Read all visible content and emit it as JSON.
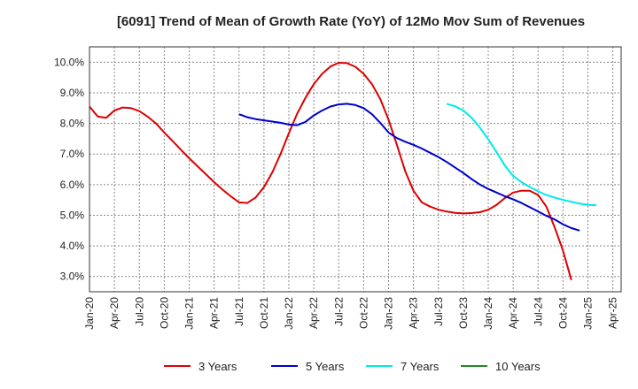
{
  "chart_data": {
    "type": "line",
    "title": "[6091]  Trend of Mean of Growth Rate (YoY) of 12Mo Mov Sum of Revenues",
    "xlabel": "",
    "ylabel": "",
    "ylim": [
      2.5,
      10.5
    ],
    "y_ticks": [
      3.0,
      4.0,
      5.0,
      6.0,
      7.0,
      8.0,
      9.0,
      10.0
    ],
    "y_tick_labels": [
      "3.0%",
      "4.0%",
      "5.0%",
      "6.0%",
      "7.0%",
      "8.0%",
      "9.0%",
      "10.0%"
    ],
    "x_tick_labels": [
      "Jan-20",
      "Apr-20",
      "Jul-20",
      "Oct-20",
      "Jan-21",
      "Apr-21",
      "Jul-21",
      "Oct-21",
      "Jan-22",
      "Apr-22",
      "Jul-22",
      "Oct-22",
      "Jan-23",
      "Apr-23",
      "Jul-23",
      "Oct-23",
      "Jan-24",
      "Apr-24",
      "Jul-24",
      "Oct-24",
      "Jan-25",
      "Apr-25"
    ],
    "x_start": "Jan-20",
    "months_total": 64,
    "grid": true,
    "legend_position": "bottom",
    "series": [
      {
        "name": "3 Years",
        "color": "#dd0000",
        "start_index": 0,
        "values": [
          8.55,
          8.22,
          8.18,
          8.42,
          8.52,
          8.5,
          8.4,
          8.22,
          8.0,
          7.7,
          7.42,
          7.14,
          6.86,
          6.6,
          6.34,
          6.08,
          5.84,
          5.62,
          5.42,
          5.4,
          5.58,
          5.92,
          6.4,
          7.0,
          7.68,
          8.32,
          8.84,
          9.28,
          9.62,
          9.86,
          9.98,
          9.97,
          9.85,
          9.62,
          9.28,
          8.8,
          8.12,
          7.3,
          6.44,
          5.8,
          5.42,
          5.28,
          5.18,
          5.12,
          5.08,
          5.06,
          5.07,
          5.1,
          5.18,
          5.34,
          5.56,
          5.74,
          5.8,
          5.8,
          5.66,
          5.28,
          4.6,
          3.84,
          2.88
        ]
      },
      {
        "name": "5 Years",
        "color": "#0000cc",
        "start_index": 18,
        "values": [
          8.3,
          8.2,
          8.14,
          8.1,
          8.06,
          8.02,
          7.96,
          7.94,
          8.05,
          8.26,
          8.42,
          8.55,
          8.62,
          8.64,
          8.6,
          8.5,
          8.3,
          8.02,
          7.7,
          7.52,
          7.4,
          7.3,
          7.18,
          7.04,
          6.9,
          6.74,
          6.56,
          6.38,
          6.18,
          6.0,
          5.86,
          5.74,
          5.62,
          5.52,
          5.4,
          5.26,
          5.12,
          4.98,
          4.86,
          4.7,
          4.58,
          4.5
        ]
      },
      {
        "name": "7 Years",
        "color": "#00e8e8",
        "start_index": 43,
        "values": [
          8.64,
          8.56,
          8.42,
          8.18,
          7.86,
          7.48,
          7.06,
          6.62,
          6.28,
          6.08,
          5.92,
          5.78,
          5.66,
          5.58,
          5.5,
          5.44,
          5.38,
          5.34,
          5.33
        ]
      },
      {
        "name": "10 Years",
        "color": "#228822",
        "start_index": 0,
        "values": []
      }
    ]
  }
}
